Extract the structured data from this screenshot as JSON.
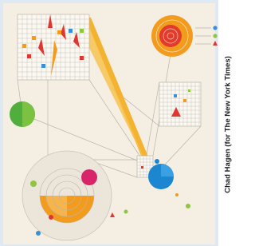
{
  "credit": "Chad Hagen (for The New York Times)"
}
